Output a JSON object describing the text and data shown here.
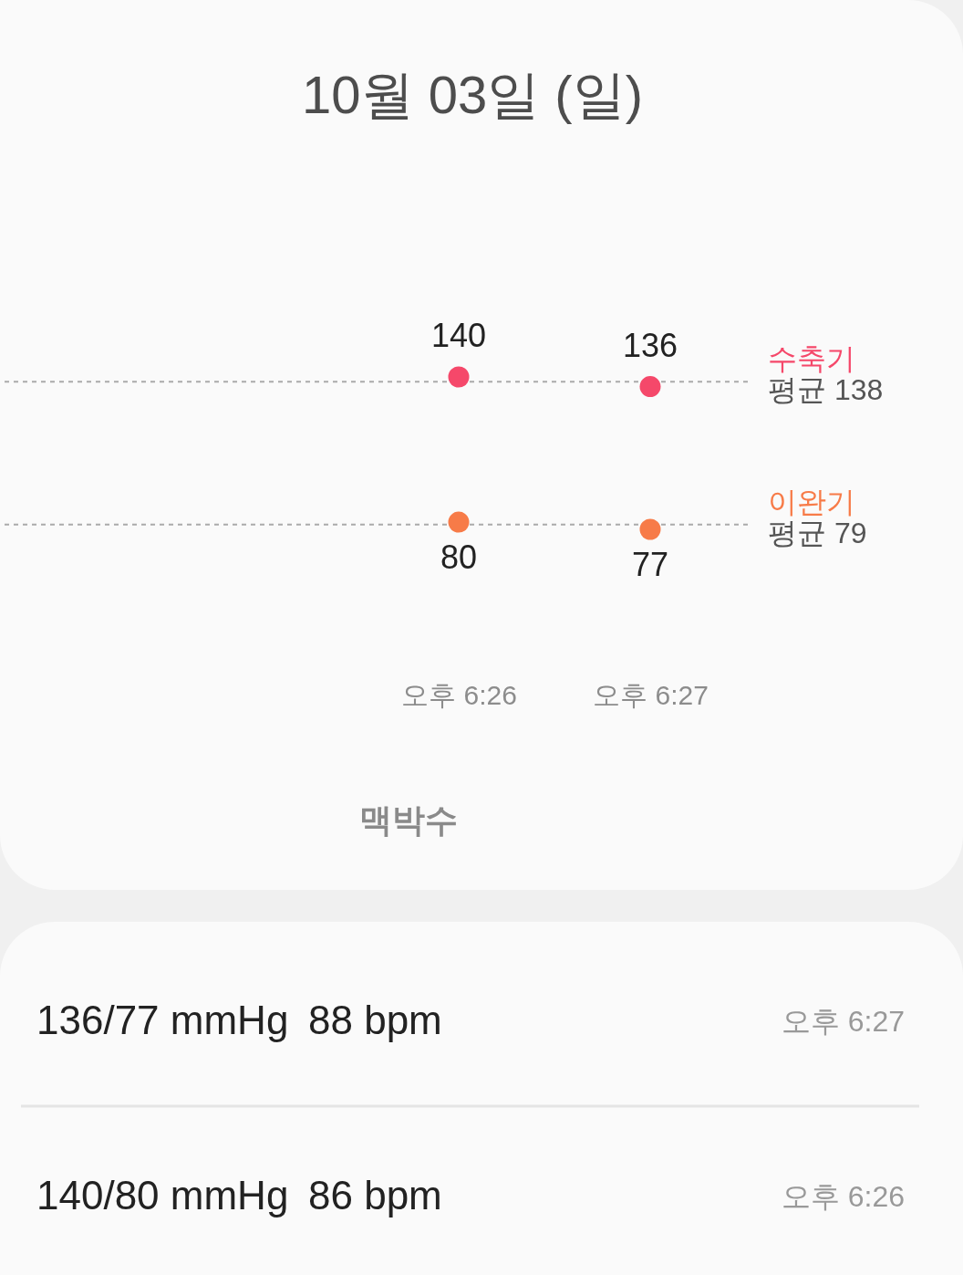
{
  "chart_data": {
    "type": "scatter",
    "title": "10월 03일 (일)",
    "categories": [
      "오후 6:26",
      "오후 6:27"
    ],
    "series": [
      {
        "name": "수축기",
        "color": "#f5486a",
        "values": [
          140,
          136
        ]
      },
      {
        "name": "이완기",
        "color": "#f77b48",
        "values": [
          80,
          77
        ]
      }
    ],
    "data_labels": true,
    "marker": "circle",
    "tick_labels": "x",
    "ref_lines": [
      {
        "axis": "y",
        "value": 138,
        "label": "평균 138",
        "color": "#aaaaaa",
        "line_style": "dotted"
      },
      {
        "axis": "y",
        "value": 79,
        "label": "평균 79",
        "color": "#aaaaaa",
        "line_style": "dotted"
      }
    ],
    "annotations": [
      "맥박수",
      "136/77 mmHg",
      "88 bpm",
      "오후 6:27",
      "140/80 mmHg",
      "86 bpm",
      "오후 6:26"
    ]
  }
}
